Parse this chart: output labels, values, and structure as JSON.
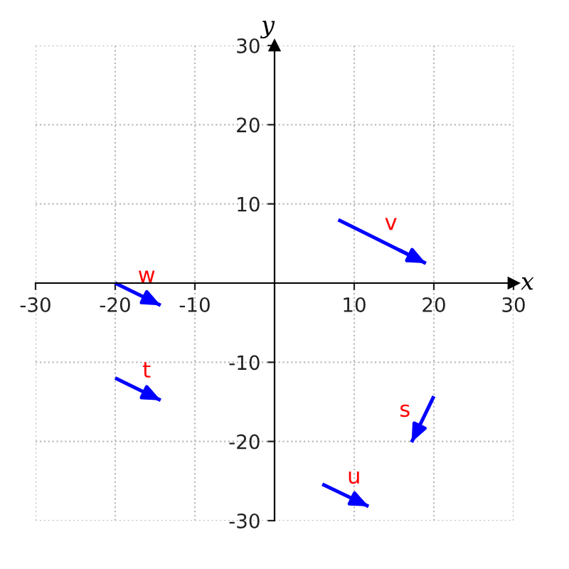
{
  "chart_data": {
    "type": "line",
    "xlabel": "x",
    "ylabel": "y",
    "xlim": [
      -30,
      30
    ],
    "ylim": [
      -30,
      30
    ],
    "xticks": [
      -30,
      -20,
      -10,
      10,
      20,
      30
    ],
    "yticks": [
      -30,
      -20,
      -10,
      10,
      20,
      30
    ],
    "grid": true,
    "marker": "none",
    "line_style": "solid",
    "series": [
      {
        "name": "v",
        "color": "#0000ff",
        "x": [
          8,
          19
        ],
        "values": [
          8,
          2.5
        ]
      },
      {
        "name": "w",
        "color": "#0000ff",
        "x": [
          -20,
          -14.3
        ],
        "values": [
          0,
          -2.8
        ]
      },
      {
        "name": "t",
        "color": "#0000ff",
        "x": [
          -20,
          -14.3
        ],
        "values": [
          -12,
          -14.8
        ]
      },
      {
        "name": "s",
        "color": "#0000ff",
        "x": [
          20,
          17.2
        ],
        "values": [
          -14.3,
          -20.1
        ]
      },
      {
        "name": "u",
        "color": "#0000ff",
        "x": [
          6,
          11.8
        ],
        "values": [
          -25.4,
          -28.2
        ]
      }
    ]
  }
}
